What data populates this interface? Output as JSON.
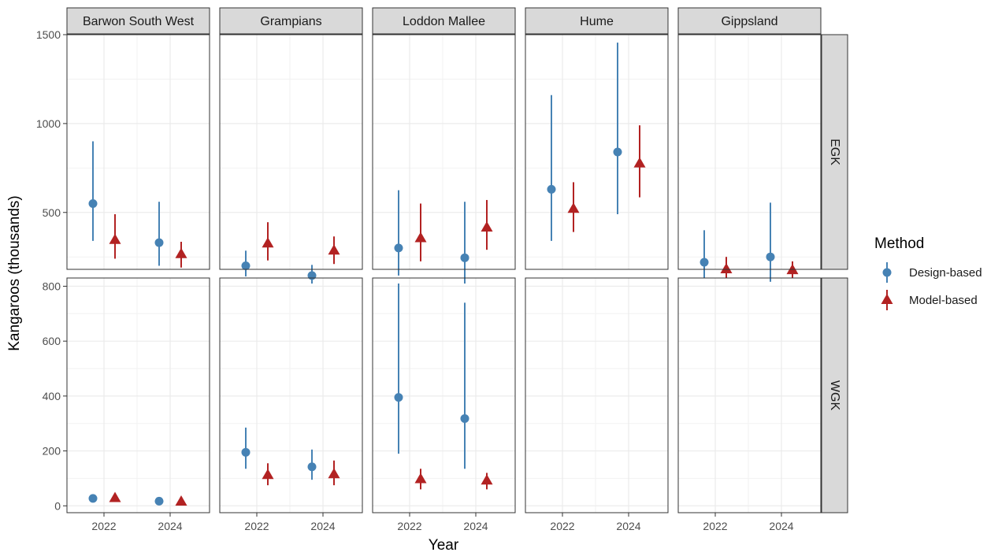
{
  "chart_data": {
    "type": "pointrange",
    "xlabel": "Year",
    "ylabel": "Kangaroos (thousands)",
    "x_ticks": [
      "2022",
      "2024"
    ],
    "facet_columns": [
      "Barwon South West",
      "Grampians",
      "Loddon Mallee",
      "Hume",
      "Gippsland"
    ],
    "facet_rows": [
      "EGK",
      "WGK"
    ],
    "row_scales": {
      "EGK": {
        "ylim": [
          180,
          1500
        ],
        "ticks": [
          500,
          1000,
          1500
        ]
      },
      "WGK": {
        "ylim": [
          -25,
          830
        ],
        "ticks": [
          0,
          200,
          400,
          600,
          800
        ]
      }
    },
    "grid": true,
    "legend": {
      "title": "Method",
      "position": "right",
      "entries": [
        {
          "name": "Design-based",
          "color": "#4682B4",
          "shape": "circle"
        },
        {
          "name": "Model-based",
          "color": "#B22222",
          "shape": "triangle"
        }
      ]
    },
    "series": [
      {
        "name": "Design-based",
        "color": "#4682B4",
        "shape": "circle",
        "points": [
          {
            "col": "Barwon South West",
            "row": "EGK",
            "year": 2022,
            "y": 550,
            "low": 340,
            "high": 900
          },
          {
            "col": "Barwon South West",
            "row": "EGK",
            "year": 2024,
            "y": 330,
            "low": 200,
            "high": 560
          },
          {
            "col": "Grampians",
            "row": "EGK",
            "year": 2022,
            "y": 200,
            "low": 140,
            "high": 285
          },
          {
            "col": "Grampians",
            "row": "EGK",
            "year": 2024,
            "y": 145,
            "low": 100,
            "high": 205
          },
          {
            "col": "Loddon Mallee",
            "row": "EGK",
            "year": 2022,
            "y": 300,
            "low": 145,
            "high": 625
          },
          {
            "col": "Loddon Mallee",
            "row": "EGK",
            "year": 2024,
            "y": 245,
            "low": 100,
            "high": 560
          },
          {
            "col": "Hume",
            "row": "EGK",
            "year": 2022,
            "y": 630,
            "low": 340,
            "high": 1160
          },
          {
            "col": "Hume",
            "row": "EGK",
            "year": 2024,
            "y": 840,
            "low": 490,
            "high": 1455
          },
          {
            "col": "Gippsland",
            "row": "EGK",
            "year": 2022,
            "y": 220,
            "low": 130,
            "high": 400
          },
          {
            "col": "Gippsland",
            "row": "EGK",
            "year": 2024,
            "y": 250,
            "low": 110,
            "high": 555
          },
          {
            "col": "Barwon South West",
            "row": "WGK",
            "year": 2022,
            "y": 27,
            "low": 15,
            "high": 40
          },
          {
            "col": "Barwon South West",
            "row": "WGK",
            "year": 2024,
            "y": 17,
            "low": 10,
            "high": 25
          },
          {
            "col": "Grampians",
            "row": "WGK",
            "year": 2022,
            "y": 195,
            "low": 135,
            "high": 285
          },
          {
            "col": "Grampians",
            "row": "WGK",
            "year": 2024,
            "y": 142,
            "low": 95,
            "high": 205
          },
          {
            "col": "Loddon Mallee",
            "row": "WGK",
            "year": 2022,
            "y": 395,
            "low": 190,
            "high": 810
          },
          {
            "col": "Loddon Mallee",
            "row": "WGK",
            "year": 2024,
            "y": 318,
            "low": 135,
            "high": 740
          }
        ]
      },
      {
        "name": "Model-based",
        "color": "#B22222",
        "shape": "triangle",
        "points": [
          {
            "col": "Barwon South West",
            "row": "EGK",
            "year": 2022,
            "y": 345,
            "low": 240,
            "high": 490
          },
          {
            "col": "Barwon South West",
            "row": "EGK",
            "year": 2024,
            "y": 265,
            "low": 190,
            "high": 335
          },
          {
            "col": "Grampians",
            "row": "EGK",
            "year": 2022,
            "y": 325,
            "low": 230,
            "high": 445
          },
          {
            "col": "Grampians",
            "row": "EGK",
            "year": 2024,
            "y": 285,
            "low": 210,
            "high": 365
          },
          {
            "col": "Loddon Mallee",
            "row": "EGK",
            "year": 2022,
            "y": 355,
            "low": 225,
            "high": 550
          },
          {
            "col": "Loddon Mallee",
            "row": "EGK",
            "year": 2024,
            "y": 415,
            "low": 290,
            "high": 570
          },
          {
            "col": "Hume",
            "row": "EGK",
            "year": 2022,
            "y": 520,
            "low": 390,
            "high": 670
          },
          {
            "col": "Hume",
            "row": "EGK",
            "year": 2024,
            "y": 775,
            "low": 585,
            "high": 990
          },
          {
            "col": "Gippsland",
            "row": "EGK",
            "year": 2022,
            "y": 180,
            "low": 130,
            "high": 250
          },
          {
            "col": "Gippsland",
            "row": "EGK",
            "year": 2024,
            "y": 175,
            "low": 130,
            "high": 225
          },
          {
            "col": "Barwon South West",
            "row": "WGK",
            "year": 2022,
            "y": 28,
            "low": 20,
            "high": 35
          },
          {
            "col": "Barwon South West",
            "row": "WGK",
            "year": 2024,
            "y": 15,
            "low": 5,
            "high": 20
          },
          {
            "col": "Grampians",
            "row": "WGK",
            "year": 2022,
            "y": 112,
            "low": 75,
            "high": 155
          },
          {
            "col": "Grampians",
            "row": "WGK",
            "year": 2024,
            "y": 115,
            "low": 75,
            "high": 165
          },
          {
            "col": "Loddon Mallee",
            "row": "WGK",
            "year": 2022,
            "y": 97,
            "low": 60,
            "high": 135
          },
          {
            "col": "Loddon Mallee",
            "row": "WGK",
            "year": 2024,
            "y": 92,
            "low": 60,
            "high": 120
          }
        ]
      }
    ]
  }
}
